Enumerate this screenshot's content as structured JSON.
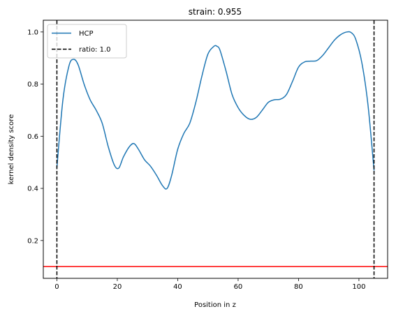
{
  "chart_data": {
    "type": "line",
    "title": "strain: 0.955",
    "xlabel": "Position in z",
    "ylabel": "kernel density score",
    "xlim": [
      -4.5,
      109.5
    ],
    "ylim": [
      0.055,
      1.045
    ],
    "xticks": [
      0,
      20,
      40,
      60,
      80,
      100
    ],
    "yticks": [
      0.2,
      0.4,
      0.6,
      0.8,
      1.0
    ],
    "xtick_labels": [
      "0",
      "20",
      "40",
      "60",
      "80",
      "100"
    ],
    "ytick_labels": [
      "0.2",
      "0.4",
      "0.6",
      "0.8",
      "1.0"
    ],
    "grid": false,
    "legend_position": "top-left",
    "series": [
      {
        "name": "HCP",
        "color": "#1f77b4",
        "style": "solid",
        "x": [
          0,
          2,
          4,
          5.5,
          7,
          9,
          11,
          13,
          15,
          17,
          19,
          20.5,
          22,
          24,
          25.5,
          27,
          29,
          31,
          33,
          35,
          36.5,
          38,
          40,
          42,
          44,
          46,
          48,
          50,
          52,
          53,
          54,
          56,
          58,
          60,
          62,
          64,
          66,
          68,
          70,
          72,
          74,
          76,
          78,
          80,
          82,
          84,
          86,
          88,
          90,
          92,
          94,
          96,
          97.5,
          99,
          101,
          103,
          105
        ],
        "values": [
          0.48,
          0.74,
          0.87,
          0.895,
          0.875,
          0.8,
          0.74,
          0.7,
          0.65,
          0.56,
          0.49,
          0.478,
          0.52,
          0.56,
          0.572,
          0.55,
          0.51,
          0.485,
          0.45,
          0.41,
          0.4,
          0.45,
          0.55,
          0.61,
          0.65,
          0.73,
          0.83,
          0.915,
          0.945,
          0.945,
          0.93,
          0.85,
          0.76,
          0.71,
          0.68,
          0.665,
          0.672,
          0.7,
          0.73,
          0.74,
          0.742,
          0.76,
          0.81,
          0.865,
          0.885,
          0.888,
          0.89,
          0.91,
          0.94,
          0.97,
          0.99,
          1.0,
          0.997,
          0.97,
          0.88,
          0.72,
          0.47
        ]
      },
      {
        "name": "ratio: 1.0",
        "color": "#000000",
        "style": "dashed",
        "vlines": [
          0,
          105
        ]
      }
    ],
    "hlines": [
      {
        "y": 0.1,
        "color": "#ff0000"
      }
    ]
  }
}
